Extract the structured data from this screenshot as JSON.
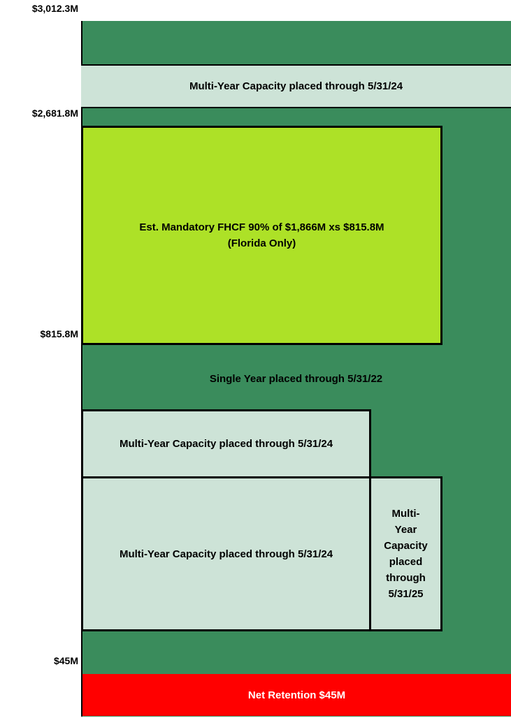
{
  "axis_labels": [
    "$3,012.3M",
    "$2,681.8M",
    "$815.8M",
    "$45M"
  ],
  "layers": [
    {
      "lines": [
        "Multi-Year Capacity placed through 5/31/24"
      ]
    },
    {
      "lines": [
        "Est. Mandatory FHCF 90% of $1,866M xs $815.8M",
        "(Florida Only)"
      ]
    },
    {
      "lines": [
        "Single Year placed through 5/31/22"
      ]
    },
    {
      "lines": [
        "Multi-Year Capacity placed through 5/31/24"
      ]
    },
    {
      "lines": [
        "Multi-Year Capacity placed through 5/31/24"
      ]
    },
    {
      "lines": [
        "Multi-",
        "Year",
        "Capacity",
        "placed",
        "through",
        "5/31/25"
      ]
    },
    {
      "lines": [
        "Net Retention $45M"
      ]
    }
  ]
}
